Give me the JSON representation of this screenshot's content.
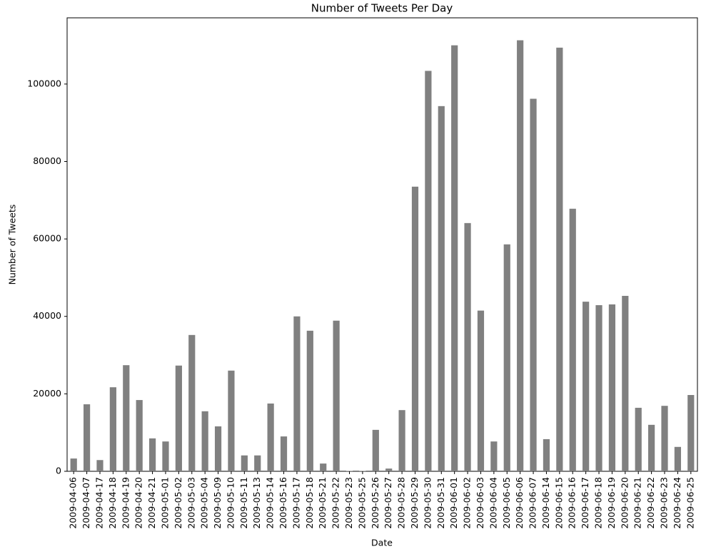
{
  "chart_data": {
    "type": "bar",
    "title": "Number of Tweets Per Day",
    "x_label": "Date",
    "y_label": "Number of Tweets",
    "categories": [
      "2009-04-06",
      "2009-04-07",
      "2009-04-17",
      "2009-04-18",
      "2009-04-19",
      "2009-04-20",
      "2009-04-21",
      "2009-05-01",
      "2009-05-02",
      "2009-05-03",
      "2009-05-04",
      "2009-05-09",
      "2009-05-10",
      "2009-05-11",
      "2009-05-13",
      "2009-05-14",
      "2009-05-16",
      "2009-05-17",
      "2009-05-18",
      "2009-05-21",
      "2009-05-22",
      "2009-05-23",
      "2009-05-25",
      "2009-05-26",
      "2009-05-27",
      "2009-05-28",
      "2009-05-29",
      "2009-05-30",
      "2009-05-31",
      "2009-06-01",
      "2009-06-02",
      "2009-06-03",
      "2009-06-04",
      "2009-06-05",
      "2009-06-06",
      "2009-06-07",
      "2009-06-14",
      "2009-06-15",
      "2009-06-16",
      "2009-06-17",
      "2009-06-18",
      "2009-06-19",
      "2009-06-20",
      "2009-06-21",
      "2009-06-22",
      "2009-06-23",
      "2009-06-24",
      "2009-06-25"
    ],
    "values": [
      3300,
      17300,
      2900,
      21700,
      27400,
      18400,
      8500,
      7700,
      27300,
      35200,
      15500,
      11600,
      26000,
      4100,
      4100,
      17500,
      9000,
      40000,
      36300,
      2000,
      38900,
      100,
      100,
      10700,
      700,
      15800,
      73500,
      103400,
      94300,
      110000,
      64100,
      41500,
      7700,
      58600,
      111300,
      96200,
      8300,
      109400,
      67800,
      43800,
      42900,
      43100,
      45300,
      16400,
      12000,
      16900,
      6300,
      19700
    ],
    "color": "#808080",
    "ylim": [
      0,
      117100
    ],
    "yticks": [
      0,
      20000,
      40000,
      60000,
      80000,
      100000
    ],
    "grid": false
  }
}
